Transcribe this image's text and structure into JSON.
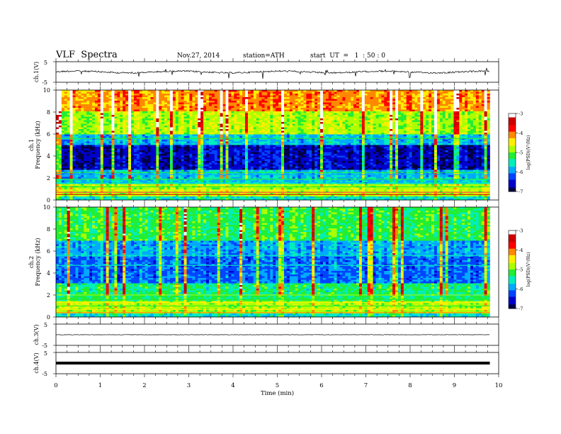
{
  "header": {
    "title": "VLF  Spectra",
    "date": "Nov.27, 2014",
    "station": "station=ATH",
    "start": "start  UT  =   1  : 50 : 0"
  },
  "chart_data": {
    "type": "heatmap",
    "xlabel": "Time  (min)",
    "xlim": [
      0,
      10
    ],
    "xticks": [
      "0",
      "1",
      "2",
      "3",
      "4",
      "5",
      "6",
      "7",
      "8",
      "9",
      "10"
    ],
    "data_end_min": 9.8,
    "panels": [
      {
        "id": "ch1-wave",
        "type": "line",
        "ylabel": "ch.1(V)",
        "yticks": [
          "5",
          "-5"
        ],
        "ylim": [
          -5,
          5
        ],
        "level": 0.0,
        "noise": "moderate with spikes"
      },
      {
        "id": "ch1-spec",
        "type": "heatmap",
        "ylabel_top": "ch.1",
        "ylabel": "Frequency  (kHz)",
        "ylim": [
          0,
          10
        ],
        "yticks": [
          "0",
          "2",
          "4",
          "6",
          "8",
          "10"
        ],
        "colorbar": {
          "label": "log(PSD)(V²/Hz)",
          "ticks": [
            "-3",
            "-4",
            "-5",
            "-6",
            "-7"
          ],
          "range": [
            -7,
            -3
          ]
        },
        "description": "high PSD (orange/red/yellow) above ~6 kHz, dark blue band 3-5 kHz, horizontal lines at 0-2.5 kHz, strong red near 0.5 kHz"
      },
      {
        "id": "ch2-spec",
        "type": "heatmap",
        "ylabel_top": "ch.2",
        "ylabel": "Frequency  (kHz)",
        "ylim": [
          0,
          10
        ],
        "yticks": [
          "0",
          "2",
          "4",
          "6",
          "8",
          "10"
        ],
        "colorbar": {
          "label": "log(PSD)(V²/Hz)",
          "ticks": [
            "-3",
            "-4",
            "-5",
            "-6",
            "-7"
          ],
          "range": [
            -7,
            -3
          ]
        },
        "description": "mostly blue/cyan with green above ~6 kHz, horizontal lines 0-2 kHz"
      },
      {
        "id": "ch3-wave",
        "type": "line",
        "ylabel": "ch.3(V)",
        "yticks": [
          "5",
          "-5"
        ],
        "ylim": [
          -5,
          5
        ],
        "level": 0.0,
        "noise": "low"
      },
      {
        "id": "ch4-wave",
        "type": "line",
        "ylabel": "ch.4(V)",
        "yticks": [
          "5",
          "-5"
        ],
        "ylim": [
          -5,
          5
        ],
        "level": 0.0,
        "noise": "thick band"
      }
    ]
  },
  "colors": {
    "scale": [
      "#000044",
      "#0000cc",
      "#0044ff",
      "#00aaff",
      "#00eebb",
      "#22ee33",
      "#aaff00",
      "#ffee00",
      "#ff8800",
      "#ff0000",
      "#cc0000",
      "#ffffff"
    ]
  }
}
